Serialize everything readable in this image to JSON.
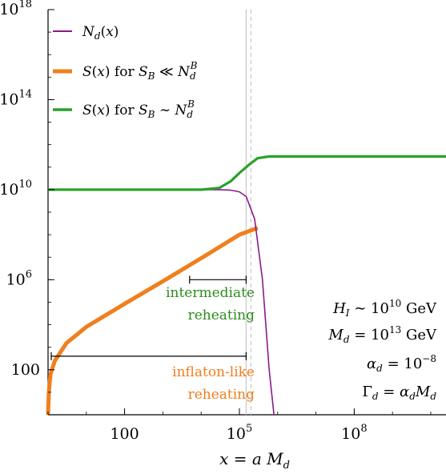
{
  "chart_data": {
    "type": "line",
    "title": "",
    "xlabel": "x = a M_d",
    "ylabel": "",
    "xscale": "log",
    "yscale": "log",
    "xlim": [
      1,
      25000000000.0
    ],
    "ylim": [
      1,
      1e+18
    ],
    "x_ticks": [
      {
        "value": 100,
        "mant": "100",
        "exp": ""
      },
      {
        "value": 100000,
        "mant": "10",
        "exp": "5"
      },
      {
        "value": 100000000,
        "mant": "10",
        "exp": "8"
      }
    ],
    "y_ticks": [
      {
        "value": 100,
        "mant": "100",
        "exp": ""
      },
      {
        "value": 1000000,
        "mant": "10",
        "exp": "6"
      },
      {
        "value": 10000000000,
        "mant": "10",
        "exp": "10"
      },
      {
        "value": 100000000000000,
        "mant": "10",
        "exp": "14"
      },
      {
        "value": 1000000000000000000,
        "mant": "10",
        "exp": "18"
      }
    ],
    "grid": false,
    "legend_position": "top-left",
    "series": [
      {
        "name": "N_d(x)",
        "color": "#8b1a8b",
        "points": [
          [
            1,
            10000000000.0
          ],
          [
            10,
            10000000000.0
          ],
          [
            100,
            10000000000.0
          ],
          [
            1000,
            10000000000.0
          ],
          [
            10000,
            10000000000.0
          ],
          [
            30000,
            10000000000.0
          ],
          [
            60000,
            9500000000.0
          ],
          [
            100000,
            8000000000.0
          ],
          [
            150000,
            5000000000.0
          ],
          [
            250000,
            500000000.0
          ],
          [
            400000,
            1000000.0
          ],
          [
            600000,
            100.0
          ],
          [
            800000,
            1
          ]
        ]
      },
      {
        "name": "S(x) for S_B ≪ N_d^B",
        "color": "#f07f1d",
        "points": [
          [
            1,
            1
          ],
          [
            1.05,
            10
          ],
          [
            1.15,
            60
          ],
          [
            1.5,
            250
          ],
          [
            3,
            1500
          ],
          [
            10,
            8000
          ],
          [
            100,
            85000.0
          ],
          [
            1000,
            850000.0
          ],
          [
            10000,
            9000000.0
          ],
          [
            100000.0,
            100000000.0
          ],
          [
            300000.0,
            200000000.0
          ]
        ]
      },
      {
        "name": "S(x) for S_B ∼ N_d^B",
        "color": "#2ca02c",
        "points": [
          [
            1,
            10000000000.0
          ],
          [
            10,
            10000000000.0
          ],
          [
            100,
            10000000000.0
          ],
          [
            1000,
            10000000000.0
          ],
          [
            10000,
            10000000000.0
          ],
          [
            30000,
            12000000000.0
          ],
          [
            60000,
            24000000000.0
          ],
          [
            100000,
            55000000000.0
          ],
          [
            180000,
            130000000000.0
          ],
          [
            300000,
            250000000000.0
          ],
          [
            600000,
            300000000000.0
          ],
          [
            10000000.0,
            300000000000.0
          ],
          [
            1000000000.0,
            300000000000.0
          ],
          [
            25000000000.0,
            300000000000.0
          ]
        ]
      }
    ],
    "vlines": [
      {
        "x": 150000,
        "style": "solid",
        "color": "#c8c8c8"
      },
      {
        "x": 200000,
        "style": "dashed",
        "color": "#c8c8c8"
      }
    ],
    "annotations": {
      "intermediate_line": {
        "x_from": 5000,
        "x_to": 150000,
        "y": 1000000
      },
      "inflaton_line": {
        "x_from": 1,
        "x_to": 150000,
        "y": 400
      }
    }
  },
  "legend": {
    "item1": "N_d(x)",
    "item2_s": "S(x)",
    "item2_for": "for",
    "item2_cond": "S_B ≪ N_d^B",
    "item3_s": "S(x)",
    "item3_for": "for",
    "item3_cond": "S_B ∼ N_d^B"
  },
  "params": {
    "line1": "H_I ∼ 10^10 GeV",
    "line2": "M_d = 10^13 GeV",
    "line3": "α_d = 10^−8",
    "line4": "Γ_d = α_d M_d"
  },
  "annotations": {
    "intermediate_l1": "intermediate",
    "intermediate_l2": "reheating",
    "inflaton_l1": "inflaton-like",
    "inflaton_l2": "reheating"
  }
}
